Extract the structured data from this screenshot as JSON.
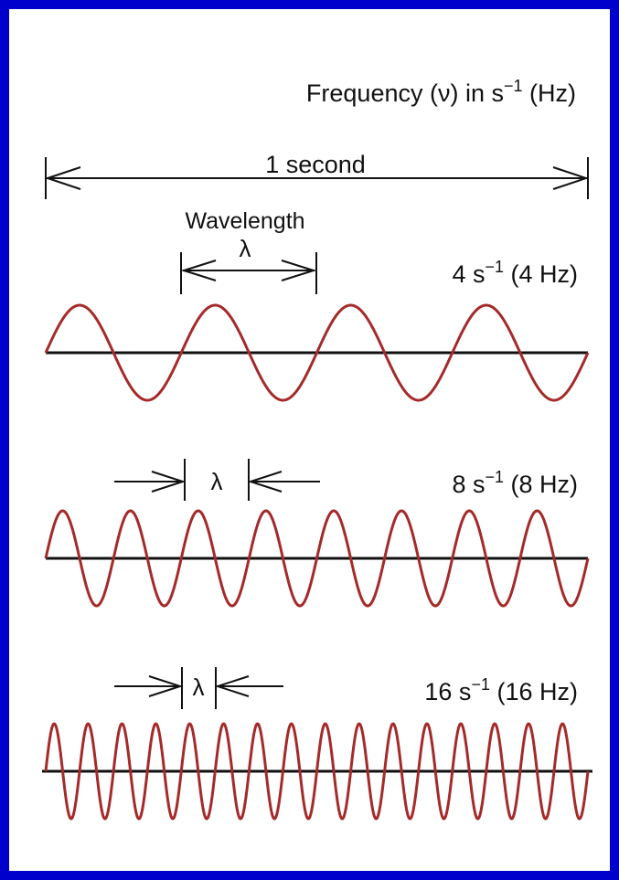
{
  "diagram": {
    "title": {
      "prefix": "Frequency (",
      "symbol": "ν",
      "middle": ")  in s",
      "exp": "−1",
      "suffix": " (Hz)"
    },
    "span_label": "1 second",
    "wavelength_label": "Wavelength",
    "lambda_symbol": "λ",
    "waves": [
      {
        "cycles_per_second": 4,
        "label_main": "4 s",
        "label_exp": "−1",
        "label_hz": " (4 Hz)"
      },
      {
        "cycles_per_second": 8,
        "label_main": "8 s",
        "label_exp": "−1",
        "label_hz": " (8 Hz)"
      },
      {
        "cycles_per_second": 16,
        "label_main": "16 s",
        "label_exp": "−1",
        "label_hz": " (16 Hz)"
      }
    ],
    "colors": {
      "border": "#0000cc",
      "background": "#ffffff",
      "wave": "#a52a2a",
      "axis": "#111111",
      "text": "#111111"
    }
  }
}
